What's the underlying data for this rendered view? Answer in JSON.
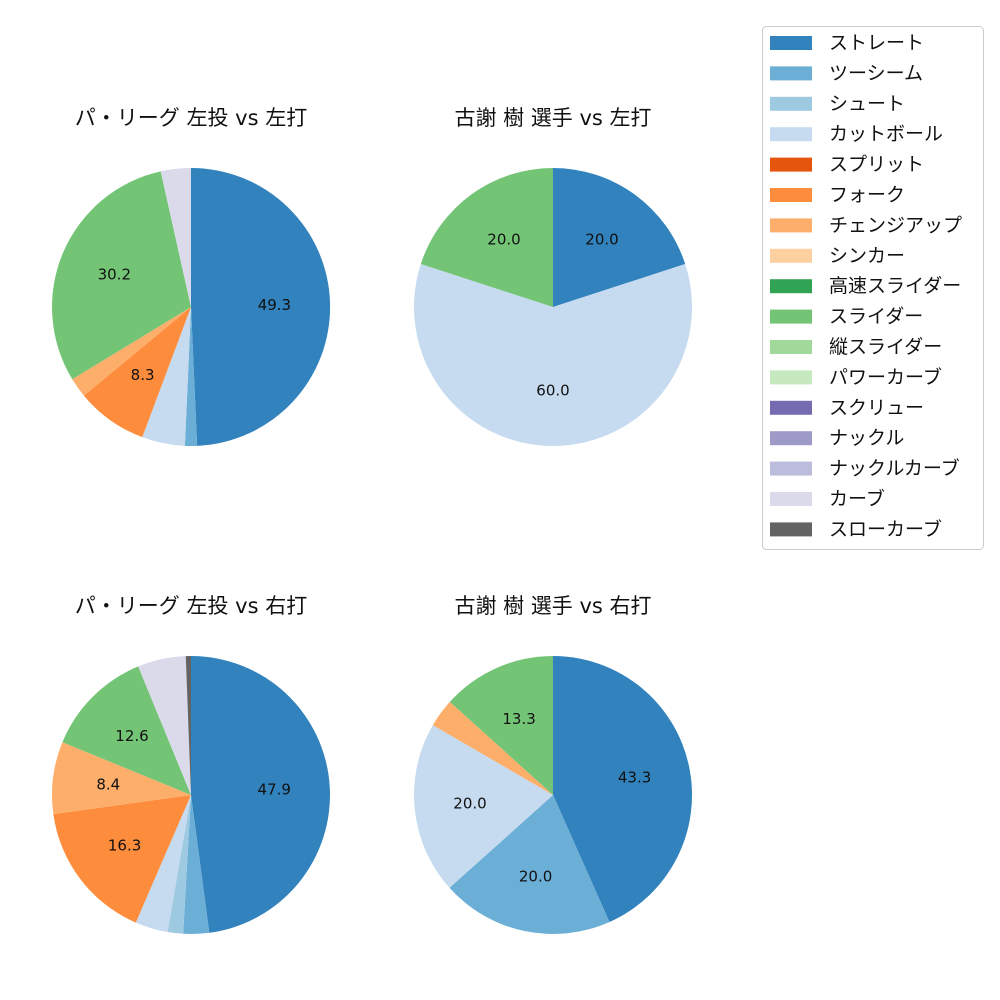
{
  "legend": {
    "items": [
      {
        "label": "ストレート",
        "color": "#3182bd"
      },
      {
        "label": "ツーシーム",
        "color": "#6baed6"
      },
      {
        "label": "シュート",
        "color": "#9ecae1"
      },
      {
        "label": "カットボール",
        "color": "#c6dbef"
      },
      {
        "label": "スプリット",
        "color": "#e6550d"
      },
      {
        "label": "フォーク",
        "color": "#fd8d3c"
      },
      {
        "label": "チェンジアップ",
        "color": "#fdae6b"
      },
      {
        "label": "シンカー",
        "color": "#fdd0a2"
      },
      {
        "label": "高速スライダー",
        "color": "#31a354"
      },
      {
        "label": "スライダー",
        "color": "#74c476"
      },
      {
        "label": "縦スライダー",
        "color": "#a1d99b"
      },
      {
        "label": "パワーカーブ",
        "color": "#c7e9c0"
      },
      {
        "label": "スクリュー",
        "color": "#756bb1"
      },
      {
        "label": "ナックル",
        "color": "#9e9ac8"
      },
      {
        "label": "ナックルカーブ",
        "color": "#bcbddc"
      },
      {
        "label": "カーブ",
        "color": "#dadaeb"
      },
      {
        "label": "スローカーブ",
        "color": "#636363"
      }
    ]
  },
  "chart_data": [
    {
      "type": "pie",
      "title": "パ・リーグ 左投 vs 左打",
      "start_angle": "top, clockwise",
      "slices": [
        {
          "label": "ストレート",
          "value": 49.3,
          "show_label": true
        },
        {
          "label": "ツーシーム",
          "value": 1.4,
          "show_label": false
        },
        {
          "label": "カットボール",
          "value": 5.0,
          "show_label": false
        },
        {
          "label": "フォーク",
          "value": 8.3,
          "show_label": true
        },
        {
          "label": "チェンジアップ",
          "value": 2.3,
          "show_label": false
        },
        {
          "label": "スライダー",
          "value": 30.2,
          "show_label": true
        },
        {
          "label": "カーブ",
          "value": 3.5,
          "show_label": false
        }
      ]
    },
    {
      "type": "pie",
      "title": "古謝 樹 選手 vs 左打",
      "start_angle": "top, clockwise",
      "slices": [
        {
          "label": "ストレート",
          "value": 20.0,
          "show_label": true
        },
        {
          "label": "カットボール",
          "value": 60.0,
          "show_label": true
        },
        {
          "label": "スライダー",
          "value": 20.0,
          "show_label": true
        }
      ]
    },
    {
      "type": "pie",
      "title": "パ・リーグ 左投 vs 右打",
      "start_angle": "top, clockwise",
      "slices": [
        {
          "label": "ストレート",
          "value": 47.9,
          "show_label": true
        },
        {
          "label": "ツーシーム",
          "value": 3.0,
          "show_label": false
        },
        {
          "label": "シュート",
          "value": 1.8,
          "show_label": false
        },
        {
          "label": "カットボール",
          "value": 3.8,
          "show_label": false
        },
        {
          "label": "フォーク",
          "value": 16.3,
          "show_label": true
        },
        {
          "label": "チェンジアップ",
          "value": 8.4,
          "show_label": true
        },
        {
          "label": "スライダー",
          "value": 12.6,
          "show_label": true
        },
        {
          "label": "カーブ",
          "value": 5.6,
          "show_label": false
        },
        {
          "label": "スローカーブ",
          "value": 0.6,
          "show_label": false
        }
      ]
    },
    {
      "type": "pie",
      "title": "古謝 樹 選手 vs 右打",
      "start_angle": "top, clockwise",
      "slices": [
        {
          "label": "ストレート",
          "value": 43.3,
          "show_label": true
        },
        {
          "label": "ツーシーム",
          "value": 20.0,
          "show_label": true
        },
        {
          "label": "カットボール",
          "value": 20.0,
          "show_label": true
        },
        {
          "label": "チェンジアップ",
          "value": 3.3,
          "show_label": false
        },
        {
          "label": "スライダー",
          "value": 13.3,
          "show_label": true
        }
      ]
    }
  ]
}
